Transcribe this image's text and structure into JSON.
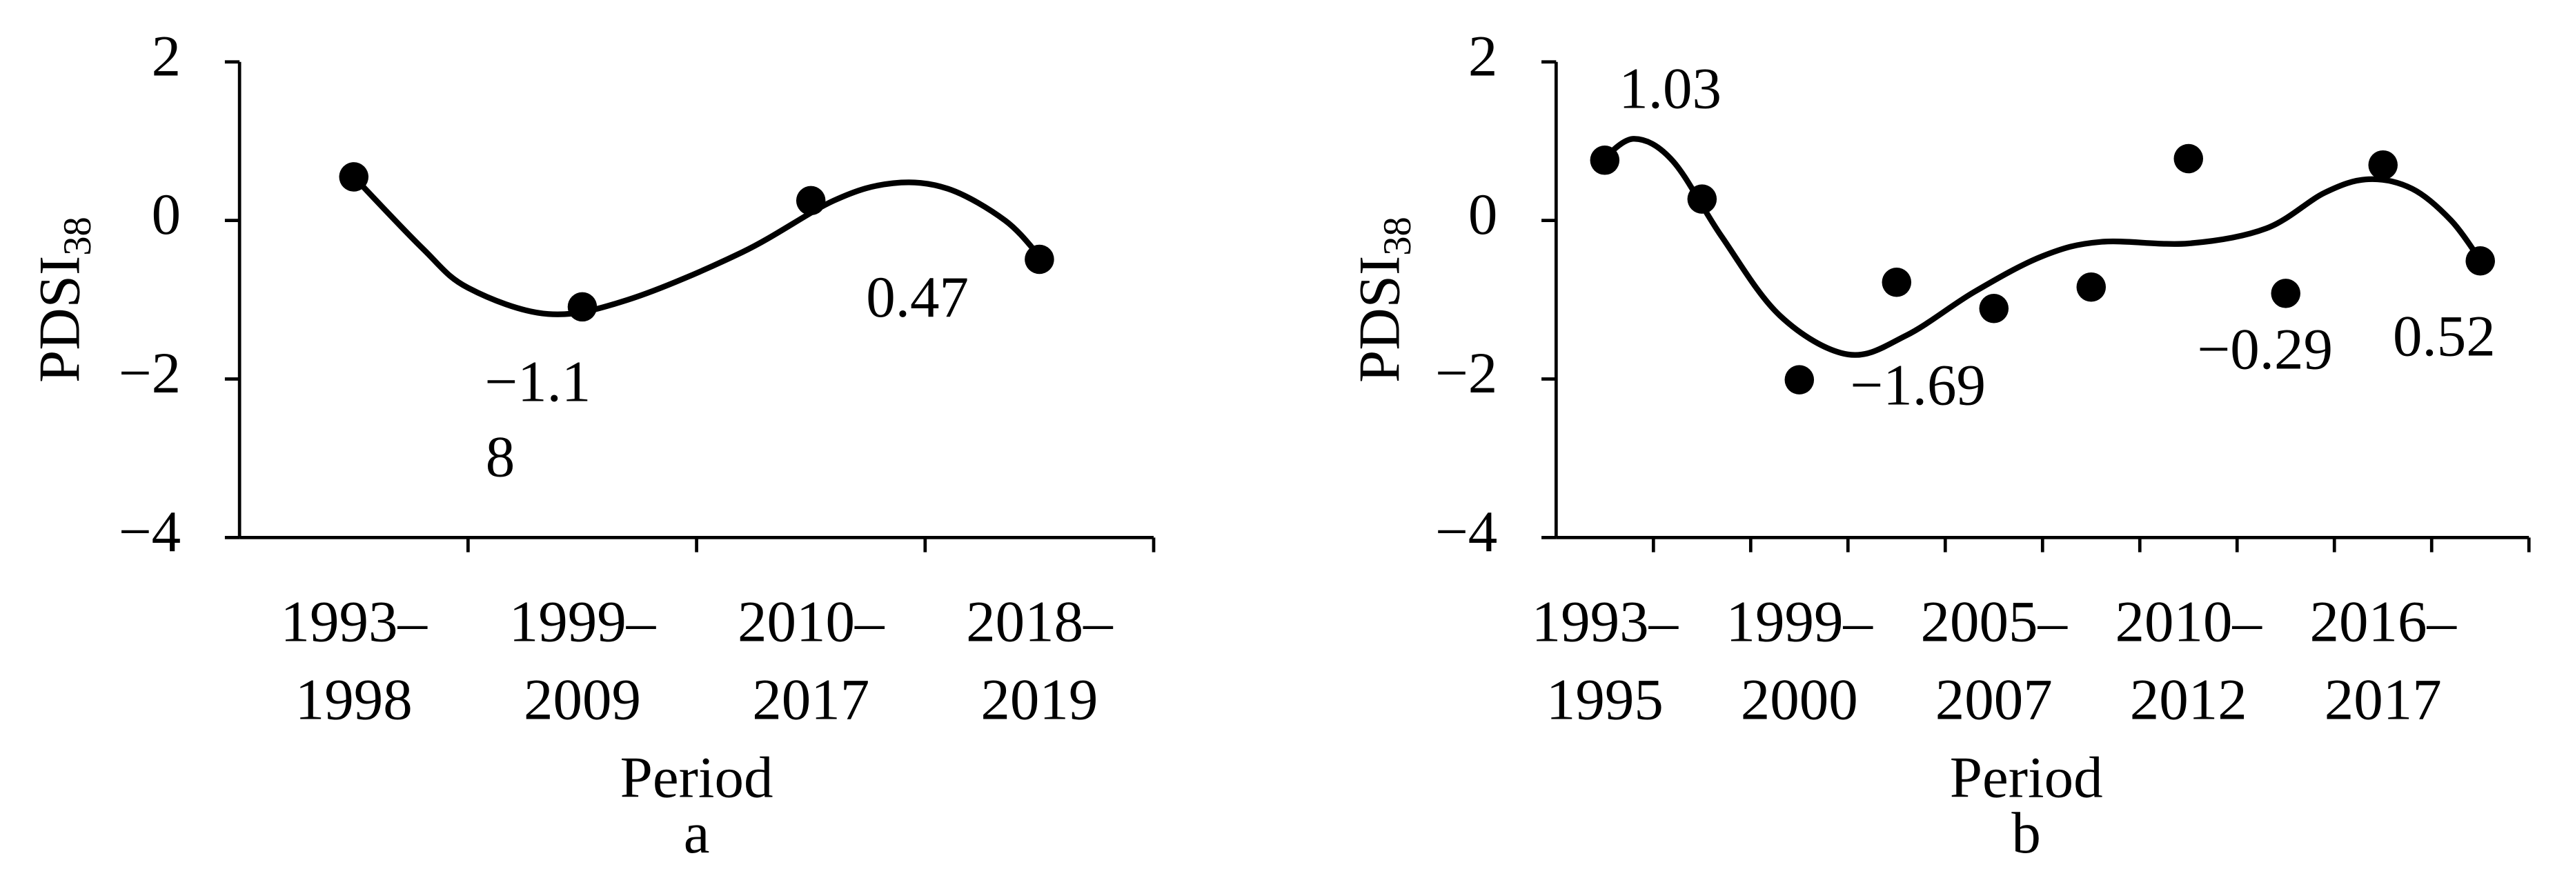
{
  "chart_data": [
    {
      "type": "scatter",
      "panel": "a",
      "xlabel": "Period",
      "ylabel": "PDSI",
      "ylabel_sub": "38",
      "categories": [
        [
          "1993–",
          "1998"
        ],
        [
          "1999–",
          "2009"
        ],
        [
          "2010–",
          "2017"
        ],
        [
          "2018–",
          "2019"
        ]
      ],
      "values": [
        0.55,
        -1.09,
        0.25,
        -0.49
      ],
      "color": "#000000",
      "trend": {
        "x": [
          0.5,
          0.8,
          1.0,
          1.35,
          1.7,
          2.2,
          2.6,
          2.86,
          3.1,
          3.35,
          3.5
        ],
        "values": [
          0.55,
          -0.35,
          -0.85,
          -1.18,
          -1.0,
          -0.4,
          0.25,
          0.47,
          0.4,
          0.0,
          -0.45
        ]
      },
      "annotations": [
        "−1.1",
        "8",
        "0.47"
      ],
      "ylim": [
        -4,
        2
      ],
      "yticks": [
        {
          "value": -4,
          "label": "−4"
        },
        {
          "value": -2,
          "label": "−2"
        },
        0,
        2
      ]
    },
    {
      "type": "scatter",
      "panel": "b",
      "xlabel": "Period",
      "ylabel": "PDSI",
      "ylabel_sub": "38",
      "categories": [
        [
          "1993–",
          "1995"
        ],
        null,
        [
          "1999–",
          "2000"
        ],
        null,
        [
          "2005–",
          "2007"
        ],
        null,
        [
          "2010–",
          "2012"
        ],
        null,
        [
          "2016–",
          "2017"
        ],
        null
      ],
      "values": [
        0.76,
        0.27,
        -2.01,
        -0.78,
        -1.11,
        -0.84,
        0.78,
        -0.92,
        0.7,
        -0.51
      ],
      "color": "#000000",
      "trend": {
        "x": [
          0.47,
          0.8,
          1.2,
          1.7,
          2.3,
          3.0,
          3.6,
          4.3,
          5.0,
          5.6,
          6.5,
          7.3,
          7.9,
          8.35,
          8.8,
          9.2,
          9.5
        ],
        "values": [
          0.76,
          1.03,
          0.75,
          -0.2,
          -1.2,
          -1.69,
          -1.45,
          -0.9,
          -0.45,
          -0.27,
          -0.29,
          -0.1,
          0.35,
          0.52,
          0.4,
          0.0,
          -0.5
        ]
      },
      "annotations": [
        "1.03",
        "−1.69",
        "−0.29",
        "0.52"
      ],
      "ylim": [
        -4,
        2
      ],
      "yticks": [
        {
          "value": -4,
          "label": "−4"
        },
        {
          "value": -2,
          "label": "−2"
        },
        0,
        2
      ]
    }
  ]
}
